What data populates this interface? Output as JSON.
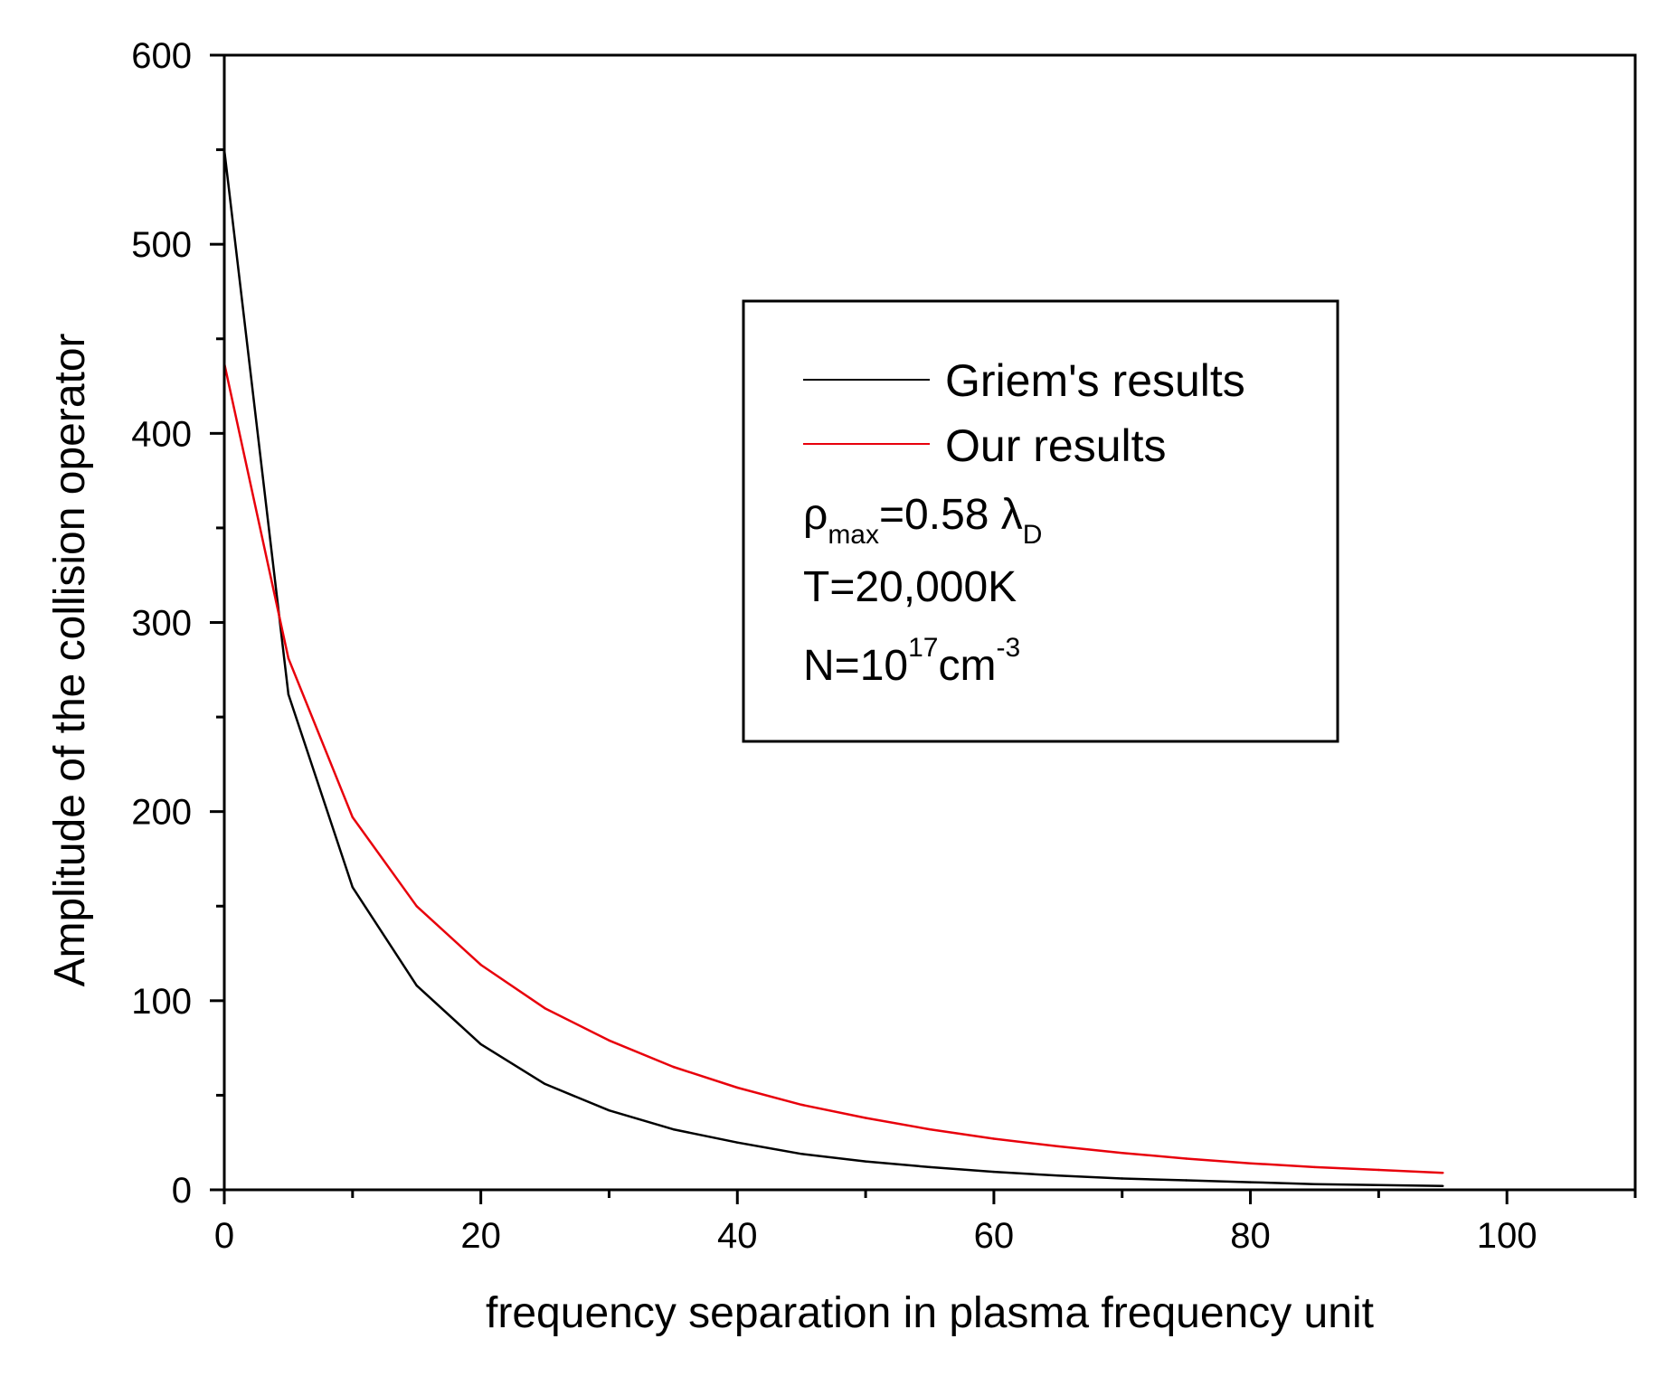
{
  "chart_data": {
    "type": "line",
    "title": "",
    "xlabel": "frequency separation in plasma frequency unit",
    "ylabel": "Amplitude of the collision operator",
    "xlim": [
      0,
      110
    ],
    "ylim": [
      0,
      600
    ],
    "x_major_ticks": [
      0,
      20,
      40,
      60,
      80,
      100
    ],
    "x_minor_ticks": [
      10,
      30,
      50,
      70,
      90,
      110
    ],
    "y_major_ticks": [
      0,
      100,
      200,
      300,
      400,
      500,
      600
    ],
    "y_minor_ticks": [
      50,
      150,
      250,
      350,
      450,
      550
    ],
    "x_tick_labels": [
      "0",
      "20",
      "40",
      "60",
      "80",
      "100"
    ],
    "y_tick_labels": [
      "0",
      "100",
      "200",
      "300",
      "400",
      "500",
      "600"
    ],
    "grid": false,
    "legend_position": "top-right",
    "x": [
      0,
      5,
      10,
      15,
      20,
      25,
      30,
      35,
      40,
      45,
      50,
      55,
      60,
      65,
      70,
      75,
      80,
      85,
      90,
      95
    ],
    "series": [
      {
        "name": "Griem's results",
        "color": "#000000",
        "values": [
          550,
          262,
          160,
          108,
          77,
          56,
          42,
          32,
          25,
          19,
          15,
          12,
          9.5,
          7.5,
          6,
          5,
          4,
          3,
          2.5,
          2
        ]
      },
      {
        "name": "Our results",
        "color": "#e8000b",
        "values": [
          437,
          281,
          197,
          150,
          119,
          96,
          79,
          65,
          54,
          45,
          38,
          32,
          27,
          23,
          19.5,
          16.5,
          14,
          12,
          10.5,
          9
        ]
      }
    ],
    "annotations": {
      "rho_symbol": "ρ",
      "rho_sub": "max",
      "rho_value": "=0.58 λ",
      "rho_value_sub": "D",
      "temperature": "T=20,000K",
      "density_base": "N=10",
      "density_exp": "17",
      "density_unit": "cm",
      "density_unit_exp": "-3"
    }
  }
}
